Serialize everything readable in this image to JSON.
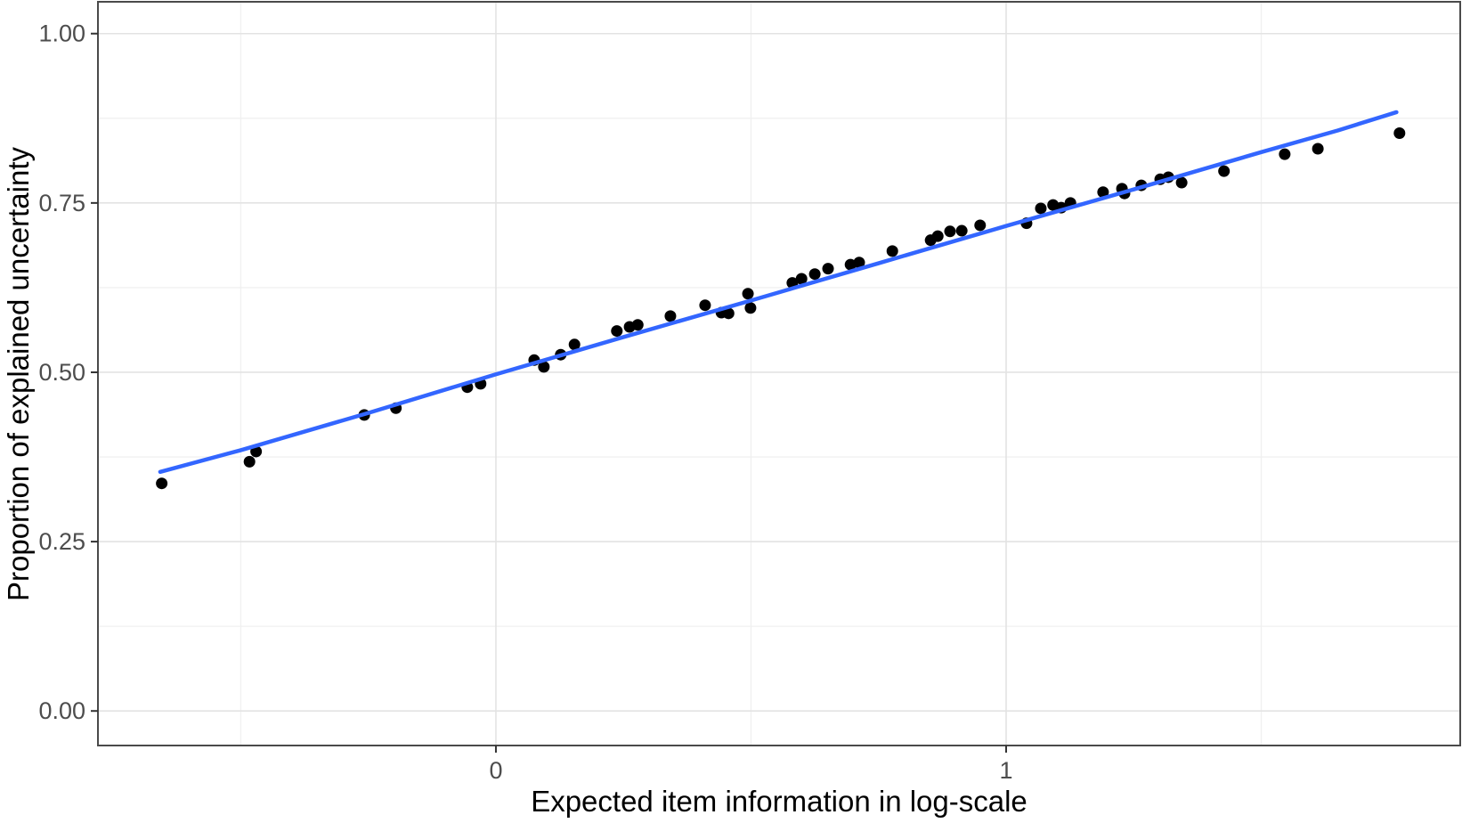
{
  "chart_data": {
    "type": "scatter",
    "title": "",
    "xlabel": "Expected item information in log-scale",
    "ylabel": "Proportion of explained uncertainty",
    "xlim": [
      -0.78,
      1.89
    ],
    "ylim": [
      -0.051,
      1.047
    ],
    "grid": true,
    "legend": "none",
    "x_ticks": [
      {
        "v": 0,
        "label": "0"
      },
      {
        "v": 1,
        "label": "1"
      }
    ],
    "x_minor_ticks": [
      -0.5,
      0.5,
      1.5
    ],
    "y_ticks": [
      {
        "v": 0.0,
        "label": "0.00"
      },
      {
        "v": 0.25,
        "label": "0.25"
      },
      {
        "v": 0.5,
        "label": "0.50"
      },
      {
        "v": 0.75,
        "label": "0.75"
      },
      {
        "v": 1.0,
        "label": "1.00"
      }
    ],
    "y_minor_ticks": [
      0.125,
      0.375,
      0.625,
      0.875
    ],
    "colors": {
      "point": "#000000",
      "smooth_line": "#3366FF",
      "panel_border": "#4a4a4a",
      "grid_major": "#e3e3e3",
      "grid_minor": "#f0f0f0",
      "tick_mark": "#333333",
      "tick_text": "#4d4d4d",
      "background": "#ffffff"
    },
    "points": [
      [
        -0.655,
        0.336
      ],
      [
        -0.483,
        0.368
      ],
      [
        -0.47,
        0.383
      ],
      [
        -0.258,
        0.437
      ],
      [
        -0.196,
        0.447
      ],
      [
        -0.056,
        0.478
      ],
      [
        -0.03,
        0.483
      ],
      [
        0.075,
        0.518
      ],
      [
        0.094,
        0.508
      ],
      [
        0.127,
        0.526
      ],
      [
        0.154,
        0.541
      ],
      [
        0.237,
        0.561
      ],
      [
        0.262,
        0.567
      ],
      [
        0.278,
        0.57
      ],
      [
        0.342,
        0.583
      ],
      [
        0.41,
        0.599
      ],
      [
        0.442,
        0.588
      ],
      [
        0.456,
        0.587
      ],
      [
        0.494,
        0.616
      ],
      [
        0.499,
        0.595
      ],
      [
        0.581,
        0.632
      ],
      [
        0.599,
        0.638
      ],
      [
        0.625,
        0.645
      ],
      [
        0.651,
        0.653
      ],
      [
        0.695,
        0.659
      ],
      [
        0.712,
        0.662
      ],
      [
        0.777,
        0.679
      ],
      [
        0.852,
        0.695
      ],
      [
        0.866,
        0.701
      ],
      [
        0.89,
        0.708
      ],
      [
        0.913,
        0.709
      ],
      [
        0.949,
        0.717
      ],
      [
        1.04,
        0.72
      ],
      [
        1.068,
        0.742
      ],
      [
        1.092,
        0.747
      ],
      [
        1.108,
        0.743
      ],
      [
        1.126,
        0.75
      ],
      [
        1.19,
        0.766
      ],
      [
        1.227,
        0.771
      ],
      [
        1.232,
        0.764
      ],
      [
        1.265,
        0.776
      ],
      [
        1.302,
        0.785
      ],
      [
        1.318,
        0.788
      ],
      [
        1.344,
        0.78
      ],
      [
        1.427,
        0.797
      ],
      [
        1.546,
        0.822
      ],
      [
        1.611,
        0.83
      ],
      [
        1.771,
        0.853
      ]
    ],
    "smooth_line": [
      [
        -0.658,
        0.353
      ],
      [
        -0.5,
        0.385
      ],
      [
        -0.25,
        0.44
      ],
      [
        0.0,
        0.497
      ],
      [
        0.25,
        0.552
      ],
      [
        0.5,
        0.606
      ],
      [
        0.75,
        0.661
      ],
      [
        1.0,
        0.716
      ],
      [
        1.25,
        0.77
      ],
      [
        1.5,
        0.825
      ],
      [
        1.65,
        0.857
      ],
      [
        1.765,
        0.884
      ]
    ]
  }
}
